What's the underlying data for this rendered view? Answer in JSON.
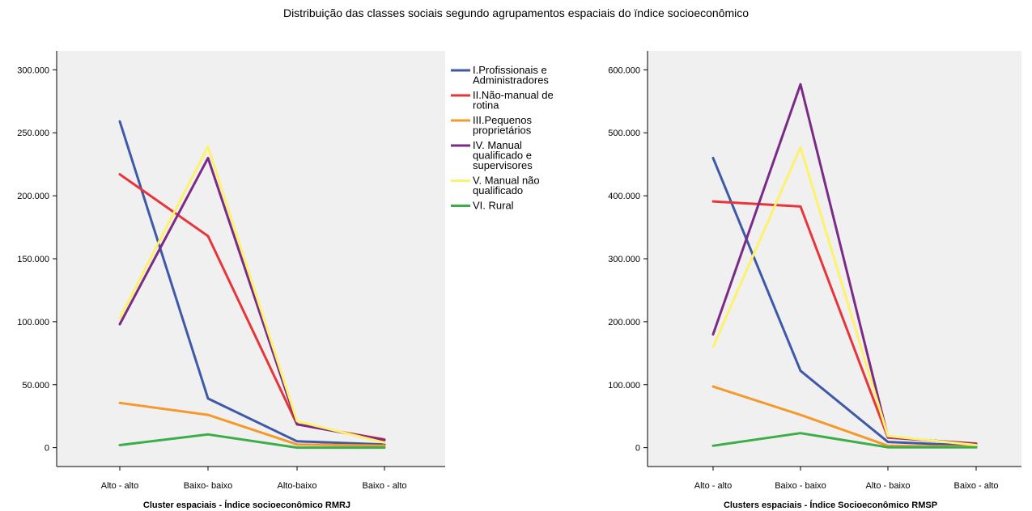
{
  "title": "Distribuição das classes sociais segundo agrupamentos espaciais do ïndice socioeconômico",
  "colors": {
    "plot_bg": "#f0f0f0",
    "series": [
      "#3e59a8",
      "#e8353a",
      "#f5992b",
      "#7b2a88",
      "#fdf26b",
      "#3bae4a"
    ]
  },
  "chart_data": [
    {
      "type": "line",
      "xlabel": "Cluster espaciais - Índice socioeconômico RMRJ",
      "ylabel": "",
      "categories": [
        "Alto - alto",
        "Baixo- baixo",
        "Alto-baixo",
        "Baixo - alto"
      ],
      "ylim": [
        -15000,
        315000
      ],
      "yticks": [
        0,
        50000,
        100000,
        150000,
        200000,
        250000,
        300000
      ],
      "ytick_labels": [
        "0",
        "50.000",
        "100.000",
        "150.000",
        "200.000",
        "250.000",
        "300.000"
      ],
      "grid": false,
      "series": [
        {
          "name": "I.Profissionais e Administradores",
          "values": [
            259000,
            39000,
            5000,
            2500
          ]
        },
        {
          "name": "II.Não-manual de rotina",
          "values": [
            217000,
            168000,
            18500,
            6500
          ]
        },
        {
          "name": "III.Pequenos proprietários",
          "values": [
            35500,
            26000,
            2500,
            1500
          ]
        },
        {
          "name": "IV. Manual qualificado e supervisores",
          "values": [
            98000,
            230000,
            18500,
            6000
          ]
        },
        {
          "name": "V. Manual não qualificado",
          "values": [
            103000,
            239000,
            21000,
            4000
          ]
        },
        {
          "name": "VI. Rural",
          "values": [
            2000,
            10500,
            0,
            0
          ]
        }
      ]
    },
    {
      "type": "line",
      "xlabel": "Clusters espaciais - Índice Socioeconômico RMSP",
      "ylabel": "",
      "categories": [
        "Alto - alto",
        "Baixo - baixo",
        "Alto - baixo",
        "Baixo - alto"
      ],
      "ylim": [
        -30000,
        630000
      ],
      "yticks": [
        0,
        100000,
        200000,
        300000,
        400000,
        500000,
        600000
      ],
      "ytick_labels": [
        "0",
        "100.000",
        "200.000",
        "300.000",
        "400.000",
        "500.000",
        "600.000"
      ],
      "grid": false,
      "series": [
        {
          "name": "I.Profissionais e Administradores",
          "values": [
            460000,
            122000,
            9000,
            3000
          ]
        },
        {
          "name": "II.Não-manual de rotina",
          "values": [
            391000,
            383000,
            16000,
            6500
          ]
        },
        {
          "name": "III.Pequenos proprietários",
          "values": [
            97000,
            52000,
            3000,
            1500
          ]
        },
        {
          "name": "IV. Manual qualificado e supervisores",
          "values": [
            180000,
            577000,
            17000,
            5500
          ]
        },
        {
          "name": "V. Manual não qualificado",
          "values": [
            160000,
            477000,
            18500,
            4000
          ]
        },
        {
          "name": "VI. Rural",
          "values": [
            3000,
            23000,
            500,
            500
          ]
        }
      ]
    }
  ],
  "legend": {
    "position": "top-center",
    "items": [
      {
        "lines": [
          "I.Profissionais e",
          "Administradores"
        ]
      },
      {
        "lines": [
          "II.Não-manual de",
          "rotina"
        ]
      },
      {
        "lines": [
          "III.Pequenos",
          "proprietários"
        ]
      },
      {
        "lines": [
          "IV. Manual",
          "qualificado e",
          "supervisores"
        ]
      },
      {
        "lines": [
          "V. Manual não",
          "qualificado"
        ]
      },
      {
        "lines": [
          "VI. Rural"
        ]
      }
    ]
  }
}
